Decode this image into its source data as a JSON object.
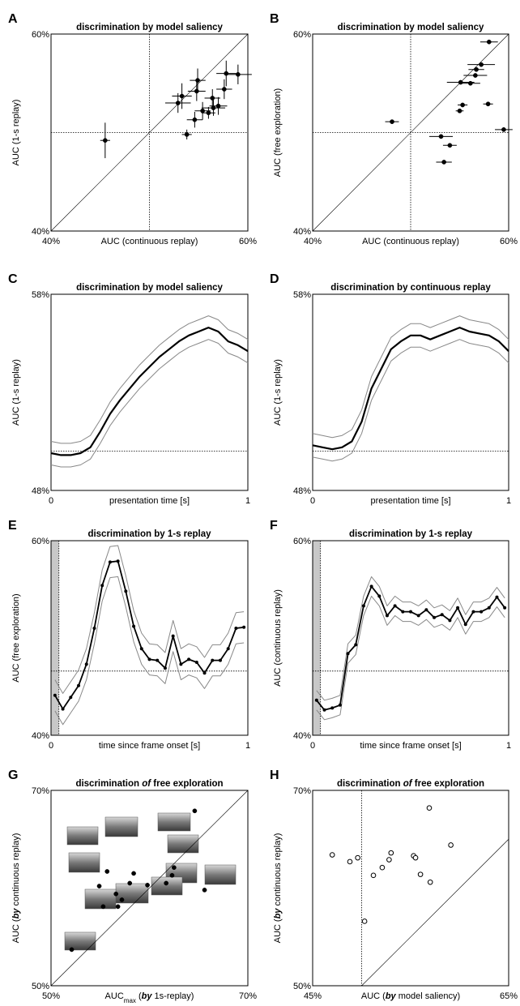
{
  "chart_data": [
    {
      "type": "scatter",
      "panel_label": "A",
      "title": "discrimination by model saliency",
      "xlabel": "AUC (continuous replay)",
      "ylabel": "AUC (1-s replay)",
      "xlim": [
        40,
        60
      ],
      "ylim": [
        40,
        60
      ],
      "xticks": [
        {
          "value": 40,
          "label": "40%"
        },
        {
          "value": 60,
          "label": "60%"
        }
      ],
      "yticks": [
        {
          "value": 40,
          "label": "40%"
        },
        {
          "value": 60,
          "label": "60%"
        }
      ],
      "hlines": [
        50
      ],
      "vlines": [
        50
      ],
      "diagonal": true,
      "marker": "filled",
      "color": "#000000",
      "x": [
        45.5,
        52.9,
        53.3,
        53.8,
        54.6,
        54.9,
        54.8,
        55.4,
        56.0,
        56.4,
        56.5,
        57.0,
        57.6,
        57.8,
        59.0
      ],
      "y": [
        49.2,
        53.0,
        53.7,
        49.8,
        51.3,
        55.3,
        54.2,
        52.2,
        52.0,
        53.5,
        52.5,
        52.7,
        54.4,
        56.0,
        55.9
      ],
      "xerr": [
        0.5,
        1.3,
        1.0,
        0.5,
        0.8,
        0.8,
        0.9,
        0.8,
        0.7,
        0.8,
        1.2,
        0.9,
        0.8,
        1.0,
        1.4
      ],
      "yerr": [
        1.8,
        1.0,
        1.3,
        0.5,
        0.8,
        1.2,
        1.0,
        0.9,
        0.6,
        0.9,
        0.8,
        0.9,
        1.0,
        1.3,
        1.0
      ]
    },
    {
      "type": "scatter",
      "panel_label": "B",
      "title": "discrimination by model saliency",
      "xlabel": "AUC (continuous replay)",
      "ylabel": "AUC (free exploration)",
      "xlim": [
        40,
        60
      ],
      "ylim": [
        40,
        60
      ],
      "xticks": [
        {
          "value": 40,
          "label": "40%"
        },
        {
          "value": 60,
          "label": "60%"
        }
      ],
      "yticks": [
        {
          "value": 40,
          "label": "40%"
        },
        {
          "value": 60,
          "label": "60%"
        }
      ],
      "hlines": [
        50
      ],
      "vlines": [
        50
      ],
      "diagonal": true,
      "marker": "filled",
      "color": "#000000",
      "x": [
        48.1,
        53.1,
        54.0,
        53.4,
        55.0,
        55.3,
        55.1,
        56.1,
        56.6,
        57.2,
        56.7,
        58.0,
        57.9,
        59.5
      ],
      "y": [
        51.1,
        49.6,
        48.7,
        47.0,
        52.2,
        52.8,
        55.1,
        55.0,
        55.8,
        56.9,
        56.4,
        59.2,
        52.9,
        50.3
      ],
      "xerr": [
        0.7,
        1.2,
        0.7,
        0.8,
        0.4,
        0.5,
        1.4,
        1.0,
        1.2,
        1.4,
        0.8,
        0.9,
        0.5,
        0.9
      ]
    },
    {
      "type": "line",
      "panel_label": "C",
      "title": "discrimination by model saliency",
      "xlabel": "presentation time [s]",
      "ylabel": "AUC (1-s replay)",
      "xlim": [
        0,
        1
      ],
      "ylim": [
        48,
        58
      ],
      "xticks": [
        0,
        1
      ],
      "yticks": [
        {
          "value": 48,
          "label": "48%"
        },
        {
          "value": 58,
          "label": "58%"
        }
      ],
      "hlines": [
        50
      ],
      "x": [
        0,
        0.05,
        0.1,
        0.15,
        0.2,
        0.25,
        0.3,
        0.35,
        0.4,
        0.45,
        0.5,
        0.55,
        0.6,
        0.65,
        0.7,
        0.75,
        0.8,
        0.85,
        0.9,
        0.95,
        1
      ],
      "series": [
        {
          "color": "#888888",
          "width": 1,
          "values": [
            50.5,
            50.4,
            50.4,
            50.5,
            50.8,
            51.6,
            52.5,
            53.2,
            53.8,
            54.4,
            54.9,
            55.4,
            55.8,
            56.2,
            56.5,
            56.7,
            56.9,
            56.7,
            56.2,
            56.0,
            55.7
          ]
        },
        {
          "color": "#888888",
          "width": 1,
          "values": [
            49.3,
            49.2,
            49.2,
            49.3,
            49.6,
            50.4,
            51.3,
            52.0,
            52.6,
            53.2,
            53.7,
            54.2,
            54.6,
            55.0,
            55.3,
            55.5,
            55.7,
            55.5,
            55.0,
            54.8,
            54.5
          ]
        },
        {
          "color": "#000000",
          "width": 2.2,
          "values": [
            49.9,
            49.8,
            49.8,
            49.9,
            50.2,
            51.0,
            51.9,
            52.6,
            53.2,
            53.8,
            54.3,
            54.8,
            55.2,
            55.6,
            55.9,
            56.1,
            56.3,
            56.1,
            55.6,
            55.4,
            55.1
          ]
        }
      ]
    },
    {
      "type": "line",
      "panel_label": "D",
      "title": "discrimination by continuous replay",
      "xlabel": "presentation time [s]",
      "ylabel": "AUC (1-s replay)",
      "xlim": [
        0,
        1
      ],
      "ylim": [
        48,
        58
      ],
      "xticks": [
        0,
        1
      ],
      "yticks": [
        {
          "value": 48,
          "label": "48%"
        },
        {
          "value": 58,
          "label": "58%"
        }
      ],
      "hlines": [
        50
      ],
      "x": [
        0,
        0.05,
        0.1,
        0.15,
        0.2,
        0.25,
        0.3,
        0.35,
        0.4,
        0.45,
        0.5,
        0.55,
        0.6,
        0.65,
        0.7,
        0.75,
        0.8,
        0.85,
        0.9,
        0.95,
        1
      ],
      "series": [
        {
          "color": "#888888",
          "width": 1,
          "values": [
            50.9,
            50.8,
            50.7,
            50.8,
            51.1,
            52.1,
            53.8,
            54.8,
            55.8,
            56.2,
            56.5,
            56.5,
            56.3,
            56.5,
            56.7,
            56.9,
            56.7,
            56.6,
            56.5,
            56.2,
            55.7
          ]
        },
        {
          "color": "#888888",
          "width": 1,
          "values": [
            49.7,
            49.6,
            49.5,
            49.6,
            49.9,
            50.9,
            52.6,
            53.6,
            54.6,
            55.0,
            55.3,
            55.3,
            55.1,
            55.3,
            55.5,
            55.7,
            55.5,
            55.4,
            55.3,
            55.0,
            54.5
          ]
        },
        {
          "color": "#000000",
          "width": 2.2,
          "values": [
            50.3,
            50.2,
            50.1,
            50.2,
            50.5,
            51.5,
            53.2,
            54.2,
            55.2,
            55.6,
            55.9,
            55.9,
            55.7,
            55.9,
            56.1,
            56.3,
            56.1,
            56.0,
            55.9,
            55.6,
            55.1
          ]
        }
      ]
    },
    {
      "type": "line",
      "panel_label": "E",
      "title": "discrimination by 1-s replay",
      "xlabel": "time since frame onset [s]",
      "ylabel": "AUC (free exploration)",
      "xlim": [
        0,
        1
      ],
      "ylim": [
        40,
        60
      ],
      "xticks": [
        0,
        1
      ],
      "yticks": [
        {
          "value": 40,
          "label": "40%"
        },
        {
          "value": 60,
          "label": "60%"
        }
      ],
      "hlines": [
        46.6
      ],
      "vlines": [
        0.04
      ],
      "shade": [
        0,
        0.04
      ],
      "x": [
        0.02,
        0.06,
        0.1,
        0.14,
        0.18,
        0.22,
        0.26,
        0.3,
        0.34,
        0.38,
        0.42,
        0.46,
        0.5,
        0.54,
        0.58,
        0.62,
        0.66,
        0.7,
        0.74,
        0.78,
        0.82,
        0.86,
        0.9,
        0.94,
        0.98
      ],
      "series": [
        {
          "color": "#888888",
          "width": 1,
          "values": [
            45.7,
            44.3,
            45.5,
            46.7,
            48.9,
            52.6,
            57.0,
            59.4,
            59.5,
            56.4,
            52.8,
            50.5,
            49.4,
            49.3,
            48.5,
            51.8,
            48.9,
            49.4,
            49.1,
            48.0,
            49.3,
            49.3,
            50.5,
            52.6,
            52.7
          ]
        },
        {
          "color": "#888888",
          "width": 1,
          "values": [
            42.5,
            41.1,
            42.3,
            43.5,
            45.7,
            49.4,
            53.8,
            56.2,
            56.3,
            53.2,
            49.6,
            47.3,
            46.2,
            46.1,
            45.3,
            48.6,
            45.7,
            46.2,
            45.9,
            44.8,
            46.1,
            46.1,
            47.3,
            49.4,
            49.5
          ]
        },
        {
          "color": "#000000",
          "width": 1.8,
          "markers": true,
          "values": [
            44.1,
            42.7,
            43.9,
            45.1,
            47.3,
            51.0,
            55.4,
            57.8,
            57.9,
            54.8,
            51.2,
            48.9,
            47.8,
            47.7,
            46.9,
            50.2,
            47.3,
            47.8,
            47.5,
            46.4,
            47.7,
            47.7,
            48.9,
            51.0,
            51.1
          ]
        }
      ]
    },
    {
      "type": "line",
      "panel_label": "F",
      "title": "discrimination by 1-s replay",
      "xlabel": "time since frame onset [s]",
      "ylabel": "AUC (continuous replay)",
      "xlim": [
        0,
        1
      ],
      "ylim": [
        40,
        60
      ],
      "xticks": [
        0,
        1
      ],
      "yticks": [
        {
          "value": 40,
          "label": "40%"
        },
        {
          "value": 60,
          "label": "60%"
        }
      ],
      "hlines": [
        46.6
      ],
      "vlines": [
        0.04
      ],
      "shade": [
        0,
        0.04
      ],
      "x": [
        0.02,
        0.06,
        0.1,
        0.14,
        0.18,
        0.22,
        0.26,
        0.3,
        0.34,
        0.38,
        0.42,
        0.46,
        0.5,
        0.54,
        0.58,
        0.62,
        0.66,
        0.7,
        0.74,
        0.78,
        0.82,
        0.86,
        0.9,
        0.94,
        0.98
      ],
      "series": [
        {
          "color": "#888888",
          "width": 1,
          "values": [
            44.6,
            43.6,
            43.8,
            44.1,
            49.4,
            50.3,
            54.3,
            56.3,
            55.3,
            53.3,
            54.3,
            53.7,
            53.7,
            53.3,
            53.9,
            53.1,
            53.4,
            52.8,
            54.1,
            52.4,
            53.7,
            53.7,
            54.1,
            55.2,
            54.1
          ]
        },
        {
          "color": "#888888",
          "width": 1,
          "values": [
            42.6,
            41.6,
            41.8,
            42.1,
            47.4,
            48.3,
            52.3,
            54.3,
            53.3,
            51.3,
            52.3,
            51.7,
            51.7,
            51.3,
            51.9,
            51.1,
            51.4,
            50.8,
            52.1,
            50.4,
            51.7,
            51.7,
            52.1,
            53.2,
            52.1
          ]
        },
        {
          "color": "#000000",
          "width": 1.8,
          "markers": true,
          "values": [
            43.6,
            42.6,
            42.8,
            43.1,
            48.4,
            49.3,
            53.3,
            55.3,
            54.3,
            52.3,
            53.3,
            52.7,
            52.7,
            52.3,
            52.9,
            52.1,
            52.4,
            51.8,
            53.1,
            51.4,
            52.7,
            52.7,
            53.1,
            54.2,
            53.1
          ]
        }
      ]
    },
    {
      "type": "scatter",
      "panel_label": "G",
      "title": "discrimination of free exploration",
      "xlabel": "AUCmax (by 1s-replay)",
      "ylabel": "AUC (by continuous replay)",
      "text_styles": [
        [
          "of",
          "italic"
        ],
        [
          "by",
          "bold-italic"
        ],
        [
          "max",
          "sub"
        ]
      ],
      "thumbnails": true,
      "xlim": [
        50,
        70
      ],
      "ylim": [
        50,
        70
      ],
      "xticks": [
        {
          "value": 50,
          "label": "50%"
        },
        {
          "value": 70,
          "label": "70%"
        }
      ],
      "yticks": [
        {
          "value": 50,
          "label": "50%"
        },
        {
          "value": 70,
          "label": "70%"
        }
      ],
      "diagonal": true,
      "marker": "filled",
      "color": "#000000",
      "x": [
        64.6,
        54.9,
        55.7,
        55.3,
        56.6,
        56.8,
        57.2,
        58.0,
        58.4,
        59.8,
        61.7,
        62.3,
        62.5,
        65.6,
        52.1
      ],
      "y": [
        67.9,
        60.2,
        61.7,
        58.1,
        59.4,
        58.1,
        58.8,
        60.5,
        61.5,
        60.3,
        60.5,
        61.3,
        62.1,
        59.8,
        53.7
      ]
    },
    {
      "type": "scatter",
      "panel_label": "H",
      "title": "discrimination of free exploration",
      "xlabel": "AUC (by model saliency)",
      "ylabel": "AUC (by continuous replay)",
      "text_styles": [
        [
          "of",
          "italic"
        ],
        [
          "by",
          "bold-italic"
        ]
      ],
      "xlim": [
        45,
        65
      ],
      "ylim": [
        50,
        70
      ],
      "xticks": [
        {
          "value": 45,
          "label": "45%"
        },
        {
          "value": 65,
          "label": "65%"
        }
      ],
      "yticks": [
        {
          "value": 50,
          "label": "50%"
        },
        {
          "value": 70,
          "label": "70%"
        }
      ],
      "vlines": [
        50
      ],
      "diagonal": true,
      "marker": "open",
      "color": "#000000",
      "x": [
        47.0,
        48.8,
        49.6,
        51.2,
        52.1,
        52.8,
        53.0,
        55.3,
        55.5,
        56.0,
        57.0,
        59.1,
        56.9,
        50.3
      ],
      "y": [
        63.4,
        62.7,
        63.1,
        61.3,
        62.1,
        62.9,
        63.6,
        63.3,
        63.1,
        61.4,
        60.6,
        64.4,
        68.2,
        56.6
      ]
    }
  ]
}
